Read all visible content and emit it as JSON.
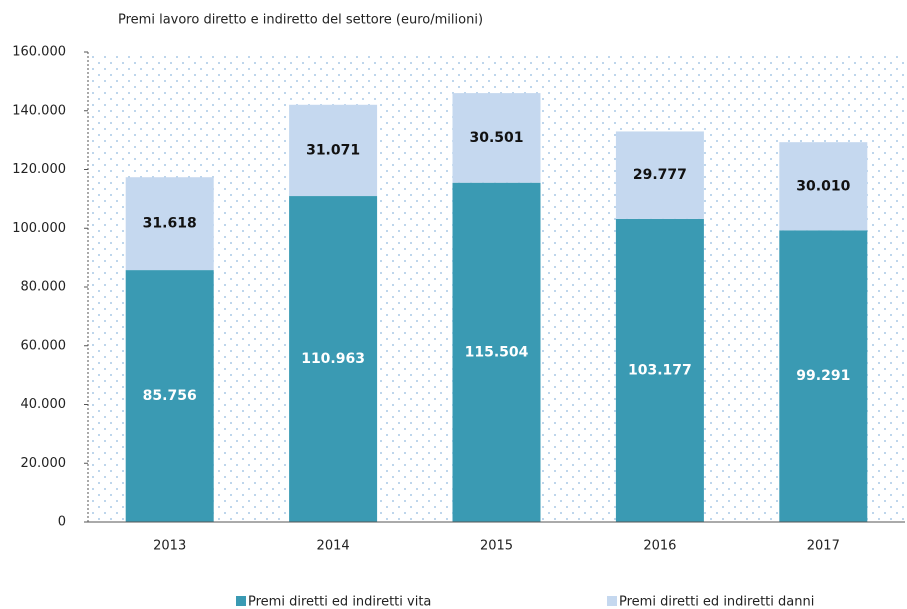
{
  "chart_data": {
    "type": "stacked_bar",
    "title": "Premi lavoro diretto e indiretto del settore (euro/milioni)",
    "categories": [
      "2013",
      "2014",
      "2015",
      "2016",
      "2017"
    ],
    "series": [
      {
        "name": "Premi diretti ed indiretti vita",
        "color": "#3a9ab3",
        "values": [
          85756,
          110963,
          115504,
          103177,
          99291
        ],
        "value_labels": [
          "85.756",
          "110.963",
          "115.504",
          "103.177",
          "99.291"
        ]
      },
      {
        "name": "Premi diretti ed indiretti danni",
        "color": "#c5d8ef",
        "values": [
          31618,
          31071,
          30501,
          29777,
          30010
        ],
        "value_labels": [
          "31.618",
          "31.071",
          "30.501",
          "29.777",
          "30.010"
        ]
      }
    ],
    "ylim": [
      0,
      160000
    ],
    "yticks": [
      0,
      {
        "value": 20000,
        "label": "20.000"
      },
      {
        "value": 40000,
        "label": "40.000"
      },
      {
        "value": 60000,
        "label": "60.000"
      },
      {
        "value": 80000,
        "label": "80.000"
      },
      {
        "value": 100000,
        "label": "100.000"
      },
      {
        "value": 120000,
        "label": "120.000"
      },
      {
        "value": 140000,
        "label": "140.000"
      },
      {
        "value": 160000,
        "label": "160.000"
      }
    ],
    "legend": "bottom"
  }
}
